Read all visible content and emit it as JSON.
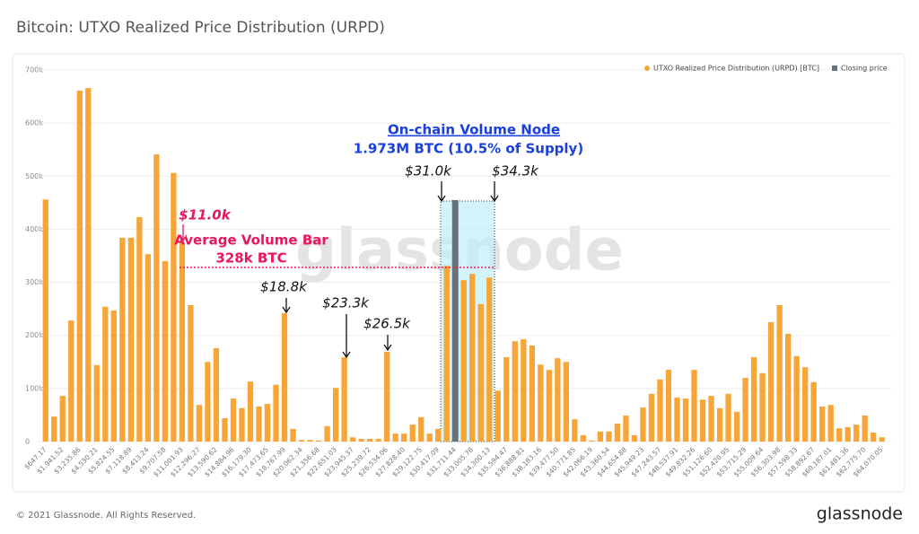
{
  "chart_data": {
    "type": "bar",
    "title": "Bitcoin: UTXO Realized Price Distribution (URPD)",
    "categories": [
      "$647.17",
      null,
      "$1,941.52",
      null,
      "$3,235.86",
      null,
      "$4,530.21",
      null,
      "$5,824.55",
      null,
      "$7,118.89",
      null,
      "$8,413.24",
      null,
      "$9,707.58",
      null,
      "$11,001.93",
      null,
      "$12,296.27",
      null,
      "$13,590.62",
      null,
      "$14,884.96",
      null,
      "$16,179.30",
      null,
      "$17,473.65",
      null,
      "$18,767.99",
      null,
      "$20,062.34",
      null,
      "$21,356.68",
      null,
      "$22,651.03",
      null,
      "$23,945.37",
      null,
      "$25,239.72",
      null,
      "$26,534.06",
      null,
      "$27,828.40",
      null,
      "$29,122.75",
      null,
      "$30,417.09",
      null,
      "$31,711.44",
      null,
      "$33,005.78",
      null,
      "$34,300.13",
      null,
      "$35,594.47",
      null,
      "$36,888.81",
      null,
      "$38,183.16",
      null,
      "$39,477.50",
      null,
      "$40,771.85",
      null,
      "$42,066.19",
      null,
      "$43,360.54",
      null,
      "$44,654.88",
      null,
      "$45,949.23",
      null,
      "$47,243.57",
      null,
      "$48,537.91",
      null,
      "$49,832.26",
      null,
      "$51,126.60",
      null,
      "$52,420.95",
      null,
      "$53,715.29",
      null,
      "$55,009.64",
      null,
      "$56,303.98",
      null,
      "$57,598.33",
      null,
      "$58,892.67",
      null,
      "$60,187.01",
      null,
      "$61,481.36",
      null,
      "$62,775.70",
      null,
      "$64,070.05"
    ],
    "series": [
      {
        "name": "UTXO Realized Price Distribution (URPD) [BTC]",
        "color": "#f7a537",
        "values": [
          456000,
          47000,
          86000,
          228000,
          661000,
          666000,
          144000,
          254000,
          247000,
          384000,
          384000,
          423000,
          353000,
          541000,
          340000,
          506000,
          375000,
          257000,
          69000,
          150000,
          176000,
          44000,
          81000,
          63000,
          113000,
          66000,
          71000,
          107000,
          242000,
          24000,
          3000,
          3000,
          2000,
          29000,
          101000,
          159000,
          8000,
          5000,
          5000,
          5000,
          169000,
          15000,
          15000,
          32000,
          46000,
          15000,
          24000,
          331000,
          330000,
          304000,
          316000,
          259000,
          309000,
          96000,
          159000,
          189000,
          193000,
          181000,
          145000,
          135000,
          157000,
          150000,
          42000,
          12000,
          2000,
          19000,
          19000,
          34000,
          49000,
          12000,
          64000,
          90000,
          117000,
          135000,
          83000,
          81000,
          135000,
          79000,
          86000,
          63000,
          90000,
          56000,
          120000,
          159000,
          129000,
          225000,
          257000,
          203000,
          161000,
          140000,
          112000,
          66000,
          69000,
          25000,
          27000,
          32000,
          49000,
          17000,
          8000
        ]
      },
      {
        "name": "Closing price",
        "color": "#66737a",
        "values": [
          null,
          null,
          null,
          null,
          null,
          null,
          null,
          null,
          null,
          null,
          null,
          null,
          null,
          null,
          null,
          null,
          null,
          null,
          null,
          null,
          null,
          null,
          null,
          null,
          null,
          null,
          null,
          null,
          null,
          null,
          null,
          null,
          null,
          null,
          null,
          null,
          null,
          null,
          null,
          null,
          null,
          null,
          null,
          null,
          null,
          null,
          null,
          null,
          455000,
          null,
          null,
          null,
          null,
          null,
          null,
          null,
          null,
          null,
          null,
          null,
          null,
          null,
          null,
          null,
          null,
          null,
          null,
          null,
          null,
          null,
          null,
          null,
          null,
          null,
          null,
          null,
          null,
          null,
          null,
          null,
          null,
          null,
          null,
          null,
          null,
          null,
          null,
          null,
          null,
          null,
          null,
          null,
          null,
          null,
          null,
          null,
          null,
          null,
          null
        ]
      }
    ],
    "ylim": [
      0,
      700000
    ],
    "yticks": [
      {
        "value": 0,
        "label": "0"
      },
      {
        "value": 100000,
        "label": "100k"
      },
      {
        "value": 200000,
        "label": "200k"
      },
      {
        "value": 300000,
        "label": "300k"
      },
      {
        "value": 400000,
        "label": "400k"
      },
      {
        "value": 500000,
        "label": "500k"
      },
      {
        "value": 600000,
        "label": "600k"
      },
      {
        "value": 700000,
        "label": "700k"
      }
    ],
    "grid": true,
    "legend": "top-right",
    "average_line": 328000,
    "annotations": [
      "On-chain Volume Node",
      "1.973M BTC (10.5% of Supply)",
      "$31.0k",
      "$34.3k",
      "$11.0k",
      "Average Volume Bar",
      "328k BTC",
      "$18.8k",
      "$23.3k",
      "$26.5k"
    ],
    "watermark": "glassnode"
  },
  "footer": {
    "copyright": "© 2021 Glassnode. All Rights Reserved.",
    "logo": "glassnode"
  }
}
